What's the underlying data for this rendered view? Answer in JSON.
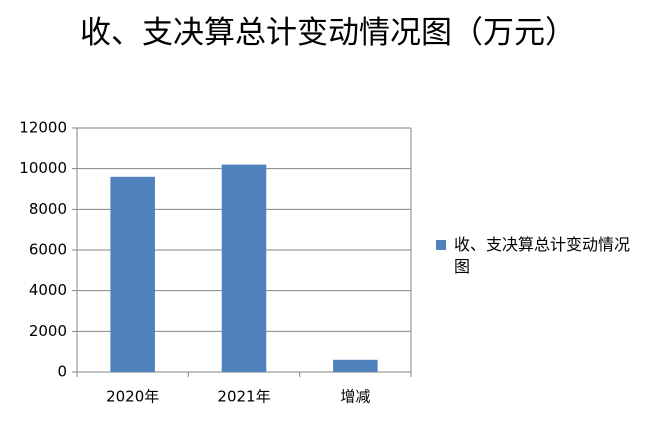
{
  "chart_data": {
    "type": "bar",
    "title": "收、支决算总计变动情况图（万元）",
    "categories": [
      "2020年",
      "2021年",
      "增减"
    ],
    "series": [
      {
        "name": "收、支决算总计变动情况图",
        "color": "#4f81bd",
        "values": [
          9600,
          10200,
          600
        ]
      }
    ],
    "ylim": [
      0,
      12000
    ],
    "yticks": [
      0,
      2000,
      4000,
      6000,
      8000,
      10000,
      12000
    ],
    "grid": true,
    "legend": "right"
  }
}
